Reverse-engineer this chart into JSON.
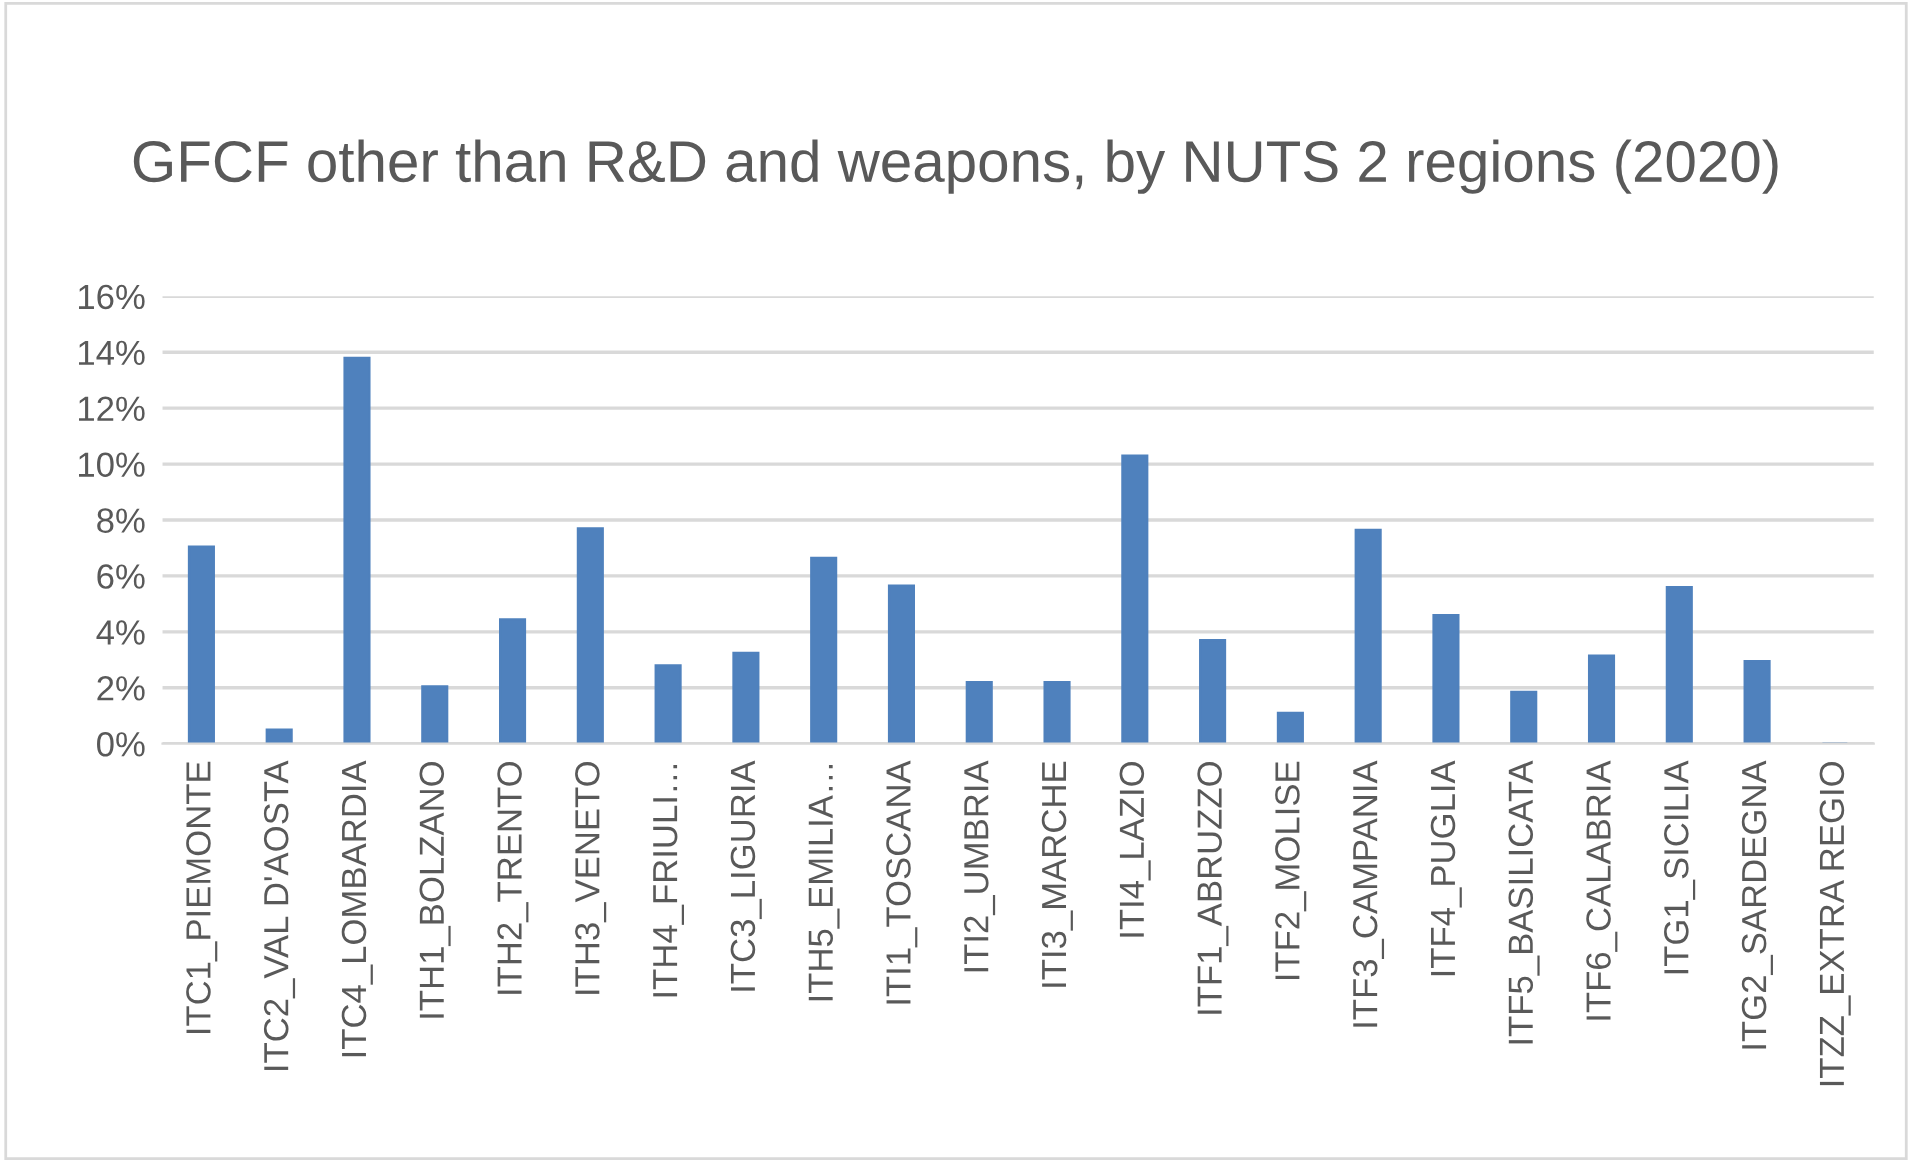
{
  "chart_data": {
    "type": "bar",
    "title": "GFCF other than R&D and weapons, by NUTS 2 regions (2020)",
    "categories": [
      "ITC1_PIEMONTE",
      "ITC2_VAL D'AOSTA",
      "ITC4_LOMBARDIA",
      "ITH1_BOLZANO",
      "ITH2_TRENTO",
      "ITH3_VENETO",
      "ITH4_FRIULI…",
      "ITC3_LIGURIA",
      "ITH5_EMILIA…",
      "ITI1_TOSCANA",
      "ITI2_UMBRIA",
      "ITI3_MARCHE",
      "ITI4_LAZIO",
      "ITF1_ABRUZZO",
      "ITF2_MOLISE",
      "ITF3_CAMPANIA",
      "ITF4_PUGLIA",
      "ITF5_BASILICATA",
      "ITF6_CALABRIA",
      "ITG1_SICILIA",
      "ITG2_SARDEGNA",
      "ITZZ_EXTRA REGIO"
    ],
    "values": [
      7.05,
      0.5,
      13.8,
      2.05,
      4.45,
      7.7,
      2.8,
      3.25,
      6.65,
      5.65,
      2.2,
      2.2,
      10.3,
      3.7,
      1.1,
      7.65,
      4.6,
      1.85,
      3.15,
      5.6,
      2.95,
      0
    ],
    "color": "#4f81bd",
    "ylim": [
      0,
      16
    ],
    "yticks": [
      {
        "value": 0,
        "label": "0%"
      },
      {
        "value": 2,
        "label": "2%"
      },
      {
        "value": 4,
        "label": "4%"
      },
      {
        "value": 6,
        "label": "6%"
      },
      {
        "value": 8,
        "label": "8%"
      },
      {
        "value": 10,
        "label": "10%"
      },
      {
        "value": 12,
        "label": "12%"
      },
      {
        "value": 14,
        "label": "14%"
      },
      {
        "value": 16,
        "label": "16%"
      }
    ],
    "grid": "y",
    "legend": false
  }
}
